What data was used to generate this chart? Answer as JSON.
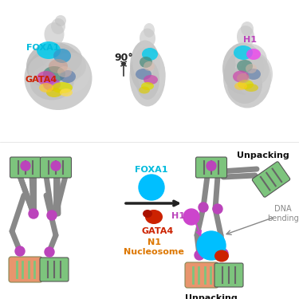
{
  "fig_width": 3.75,
  "fig_height": 3.75,
  "dpi": 100,
  "bg_color": "#ffffff",
  "colors": {
    "foxa1_cyan": "#00BFFF",
    "gata4_red": "#CC2200",
    "h1_magenta": "#CC44CC",
    "nucleosome_orange": "#E8956D",
    "dna_green": "#7DC47D",
    "dna_stripe": "#888888",
    "dna_line": "#888888",
    "purple_node": "#BB44BB",
    "arrow_color": "#222222",
    "text_foxa1": "#00BBDD",
    "text_gata4": "#CC2200",
    "text_h1": "#BB44BB",
    "text_n1": "#DD7700",
    "text_unpacking": "#111111",
    "text_dna": "#888888"
  },
  "labels": {
    "foxa1": "FOXA1",
    "gata4": "GATA4",
    "h1": "H1",
    "n1_nuc": "N1\nNucleosome",
    "unpacking_top": "Unpacking",
    "unpacking_bottom": "Unpacking",
    "dna_bending": "DNA\nbending",
    "rotation": "90°"
  }
}
